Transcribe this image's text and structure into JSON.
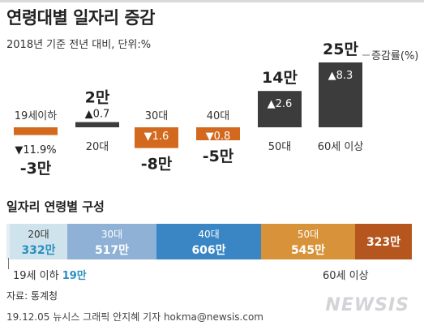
{
  "title": "연령대별 일자리 증감",
  "subtitle": "2018년 기준 전년 대비, 단위:%",
  "chart_data": {
    "type": "bar",
    "categories": [
      "19세이하",
      "20대",
      "30대",
      "40대",
      "50대",
      "60세 이상"
    ],
    "values": [
      -3,
      2,
      -8,
      -5,
      14,
      25
    ],
    "value_labels": [
      "-3만",
      "2만",
      "-8만",
      "-5만",
      "14만",
      "25만"
    ],
    "rates": [
      -11.9,
      0.7,
      -1.6,
      -0.8,
      2.6,
      8.3
    ],
    "rate_labels": [
      "▼11.9%",
      "▲0.7",
      "▼1.6",
      "▼0.8",
      "▲2.6",
      "▲8.3"
    ],
    "rate_legend": "증감률(%)",
    "ylim": [
      -8,
      25
    ],
    "colors": {
      "negative": "#d2691e",
      "positive": "#3c3c3c"
    }
  },
  "composition": {
    "title": "일자리 연령별 구성",
    "segments": [
      {
        "label": "20대",
        "value": "332만",
        "share": 332,
        "color": "#cfe3ec",
        "label_color": "#333333",
        "value_color": "#2b8fbf"
      },
      {
        "label": "30대",
        "value": "517만",
        "share": 517,
        "color": "#8fb1d6",
        "label_color": "#ffffff",
        "value_color": "#ffffff"
      },
      {
        "label": "40대",
        "value": "606만",
        "share": 606,
        "color": "#3a86c4",
        "label_color": "#ffffff",
        "value_color": "#ffffff"
      },
      {
        "label": "50대",
        "value": "545만",
        "share": 545,
        "color": "#d8933a",
        "label_color": "#ffffff",
        "value_color": "#ffffff"
      },
      {
        "label": "",
        "value": "323만",
        "share": 323,
        "color": "#b5561e",
        "label_color": "#ffffff",
        "value_color": "#ffffff"
      }
    ],
    "teen_label": "19세 이하",
    "teen_value": "19만",
    "teen_share": 19,
    "teen_color": "#e6eef2",
    "sixty_label": "60세 이상"
  },
  "source": "자료: 통계청",
  "credit": "19.12.05 뉴시스 그래픽 안지혜 기자 hokma@newsis.com",
  "logo": "NEWSIS"
}
